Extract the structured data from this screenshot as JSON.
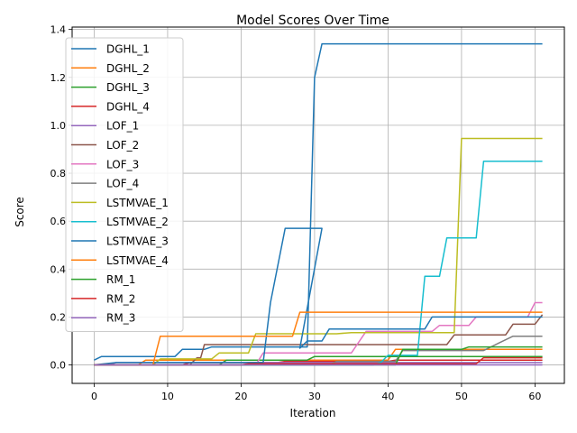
{
  "chart_data": {
    "type": "line",
    "title": "Model Scores Over Time",
    "xlabel": "Iteration",
    "ylabel": "Score",
    "xlim": [
      -3,
      64
    ],
    "ylim": [
      -0.077,
      1.41
    ],
    "xticks": [
      0,
      10,
      20,
      30,
      40,
      50,
      60
    ],
    "yticks": [
      0.0,
      0.2,
      0.4,
      0.6,
      0.8,
      1.0,
      1.2,
      1.4
    ],
    "grid": true,
    "legend_position": "top-left",
    "series": [
      {
        "name": "DGHL_1",
        "color": "#1f77b4",
        "points": [
          [
            0,
            0.02
          ],
          [
            1,
            0.035
          ],
          [
            11,
            0.035
          ],
          [
            12,
            0.065
          ],
          [
            15,
            0.065
          ],
          [
            16,
            0.075
          ],
          [
            29,
            0.075
          ],
          [
            30,
            1.2
          ],
          [
            31,
            1.34
          ],
          [
            61,
            1.34
          ]
        ]
      },
      {
        "name": "DGHL_2",
        "color": "#ff7f0e",
        "points": [
          [
            0,
            0
          ],
          [
            6,
            0
          ],
          [
            7,
            0.02
          ],
          [
            40,
            0.02
          ],
          [
            41,
            0.065
          ],
          [
            61,
            0.065
          ]
        ]
      },
      {
        "name": "DGHL_3",
        "color": "#2ca02c",
        "points": [
          [
            0,
            0
          ],
          [
            17,
            0
          ],
          [
            18,
            0.02
          ],
          [
            29,
            0.02
          ],
          [
            30,
            0.035
          ],
          [
            61,
            0.035
          ]
        ]
      },
      {
        "name": "DGHL_4",
        "color": "#d62728",
        "points": [
          [
            0,
            0
          ],
          [
            12,
            0
          ],
          [
            13,
            0.01
          ],
          [
            25,
            0.01
          ],
          [
            26,
            0.015
          ],
          [
            40,
            0.015
          ],
          [
            41,
            0.02
          ],
          [
            61,
            0.02
          ]
        ]
      },
      {
        "name": "LOF_1",
        "color": "#9467bd",
        "points": [
          [
            0,
            0
          ],
          [
            2,
            0
          ],
          [
            3,
            0.01
          ],
          [
            61,
            0.01
          ]
        ]
      },
      {
        "name": "LOF_2",
        "color": "#8c564b",
        "points": [
          [
            0,
            0
          ],
          [
            13,
            0
          ],
          [
            14,
            0.03
          ],
          [
            14.5,
            0.03
          ],
          [
            15,
            0.085
          ],
          [
            48,
            0.085
          ],
          [
            49,
            0.125
          ],
          [
            56,
            0.125
          ],
          [
            57,
            0.17
          ],
          [
            60,
            0.17
          ],
          [
            61,
            0.21
          ]
        ]
      },
      {
        "name": "LOF_3",
        "color": "#e377c2",
        "points": [
          [
            0,
            0
          ],
          [
            22,
            0
          ],
          [
            23,
            0.05
          ],
          [
            35,
            0.05
          ],
          [
            37,
            0.14
          ],
          [
            46,
            0.14
          ],
          [
            47,
            0.165
          ],
          [
            51,
            0.165
          ],
          [
            52,
            0.2
          ],
          [
            59,
            0.2
          ],
          [
            60,
            0.26
          ],
          [
            61,
            0.26
          ]
        ]
      },
      {
        "name": "LOF_4",
        "color": "#7f7f7f",
        "points": [
          [
            0,
            0
          ],
          [
            32,
            0
          ],
          [
            33,
            0.015
          ],
          [
            41,
            0.015
          ],
          [
            42,
            0.06
          ],
          [
            53,
            0.06
          ],
          [
            55,
            0.09
          ],
          [
            57,
            0.12
          ],
          [
            61,
            0.12
          ]
        ]
      },
      {
        "name": "LSTMVAE_1",
        "color": "#bcbd22",
        "points": [
          [
            0,
            0
          ],
          [
            8,
            0
          ],
          [
            9,
            0.025
          ],
          [
            16,
            0.025
          ],
          [
            17,
            0.05
          ],
          [
            21,
            0.05
          ],
          [
            22,
            0.13
          ],
          [
            33,
            0.13
          ],
          [
            35,
            0.135
          ],
          [
            49,
            0.135
          ],
          [
            50,
            0.945
          ],
          [
            61,
            0.945
          ]
        ]
      },
      {
        "name": "LSTMVAE_2",
        "color": "#17becf",
        "points": [
          [
            0,
            0
          ],
          [
            38,
            0
          ],
          [
            39,
            0.01
          ],
          [
            40,
            0.04
          ],
          [
            44,
            0.04
          ],
          [
            45,
            0.37
          ],
          [
            47,
            0.37
          ],
          [
            48,
            0.53
          ],
          [
            52,
            0.53
          ],
          [
            53,
            0.85
          ],
          [
            61,
            0.85
          ]
        ]
      },
      {
        "name": "LSTMVAE_3",
        "color": "#1f77b4",
        "points": [
          [
            0,
            0
          ],
          [
            3,
            0.01
          ],
          [
            23,
            0.01
          ],
          [
            24,
            0.26
          ],
          [
            26,
            0.57
          ],
          [
            29,
            0.57
          ],
          [
            30,
            0.57
          ],
          [
            31,
            0.57
          ],
          [
            28,
            0.07
          ],
          [
            29,
            0.1
          ],
          [
            31,
            0.1
          ],
          [
            32,
            0.15
          ],
          [
            45,
            0.15
          ],
          [
            46,
            0.2
          ],
          [
            61,
            0.2
          ]
        ]
      },
      {
        "name": "LSTMVAE_4",
        "color": "#ff7f0e",
        "points": [
          [
            0,
            0
          ],
          [
            8,
            0
          ],
          [
            9,
            0.12
          ],
          [
            27,
            0.12
          ],
          [
            28,
            0.22
          ],
          [
            61,
            0.22
          ]
        ]
      },
      {
        "name": "RM_1",
        "color": "#2ca02c",
        "points": [
          [
            0,
            0
          ],
          [
            41,
            0
          ],
          [
            42,
            0.065
          ],
          [
            50,
            0.065
          ],
          [
            51,
            0.075
          ],
          [
            61,
            0.075
          ]
        ]
      },
      {
        "name": "RM_2",
        "color": "#d62728",
        "points": [
          [
            0,
            0
          ],
          [
            20,
            0
          ],
          [
            21,
            0.005
          ],
          [
            52,
            0.005
          ],
          [
            53,
            0.03
          ],
          [
            61,
            0.03
          ]
        ]
      },
      {
        "name": "RM_3",
        "color": "#9467bd",
        "points": [
          [
            0,
            0
          ],
          [
            61,
            0
          ]
        ]
      }
    ]
  }
}
